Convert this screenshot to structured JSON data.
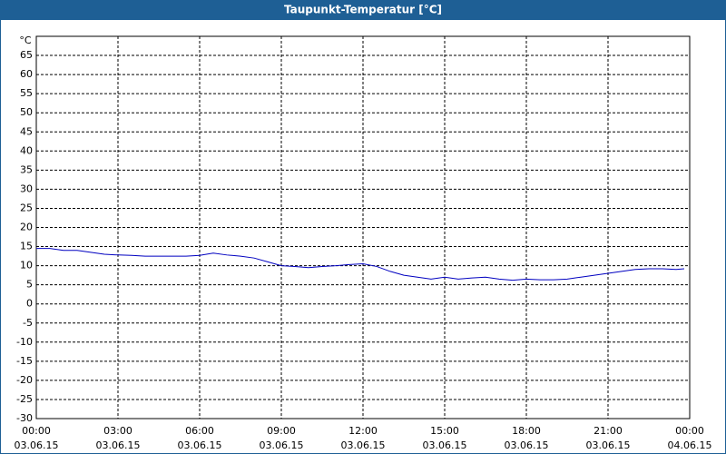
{
  "chart_data": {
    "type": "line",
    "title": "Taupunkt-Temperatur [°C]",
    "y_unit": "°C",
    "x": [
      0,
      0.5,
      1,
      1.5,
      2,
      2.5,
      3,
      3.5,
      4,
      4.5,
      5,
      5.5,
      6,
      6.5,
      7,
      7.5,
      8,
      8.5,
      9,
      9.5,
      10,
      10.5,
      11,
      11.5,
      12,
      12.5,
      13,
      13.5,
      14,
      14.5,
      15,
      15.5,
      16,
      16.5,
      17,
      17.5,
      18,
      18.5,
      19,
      19.5,
      20,
      20.5,
      21,
      21.5,
      22,
      22.5,
      23,
      23.5,
      23.8
    ],
    "series": [
      {
        "name": "Taupunkt",
        "color": "#0000c0",
        "values": [
          14.5,
          14.5,
          14,
          14,
          13.5,
          13,
          12.8,
          12.7,
          12.5,
          12.5,
          12.5,
          12.5,
          12.7,
          13.3,
          12.8,
          12.5,
          12,
          11,
          10,
          9.8,
          9.5,
          9.8,
          10,
          10.3,
          10.5,
          9.8,
          8.5,
          7.5,
          7,
          6.5,
          7,
          6.5,
          6.8,
          7,
          6.5,
          6.2,
          6.5,
          6.3,
          6.3,
          6.5,
          7,
          7.5,
          8,
          8.5,
          9,
          9.2,
          9.2,
          9,
          9.2
        ]
      }
    ],
    "xlim": [
      0,
      24
    ],
    "xticks": [
      {
        "value": 0,
        "label": "00:00"
      },
      {
        "value": 3,
        "label": "03:00"
      },
      {
        "value": 6,
        "label": "06:00"
      },
      {
        "value": 9,
        "label": "09:00"
      },
      {
        "value": 12,
        "label": "12:00"
      },
      {
        "value": 15,
        "label": "15:00"
      },
      {
        "value": 18,
        "label": "18:00"
      },
      {
        "value": 21,
        "label": "21:00"
      },
      {
        "value": 24,
        "label": "00:00"
      }
    ],
    "xtick_dates": [
      "03.06.15",
      "03.06.15",
      "03.06.15",
      "03.06.15",
      "03.06.15",
      "03.06.15",
      "03.06.15",
      "03.06.15",
      "04.06.15"
    ],
    "ylim": [
      -30,
      70
    ],
    "yticks": [
      -30,
      -25,
      -20,
      -15,
      -10,
      -5,
      0,
      5,
      10,
      15,
      20,
      25,
      30,
      35,
      40,
      45,
      50,
      55,
      60,
      65
    ],
    "grid": true
  }
}
